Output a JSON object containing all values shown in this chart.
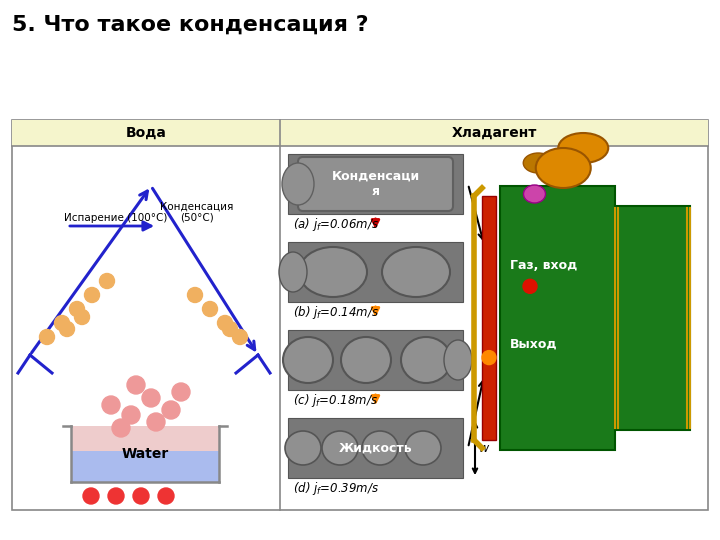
{
  "title": "5. Что такое конденсация ?",
  "title_fontsize": 16,
  "bg_color": "#ffffff",
  "header_bg": "#f5f5cc",
  "col1_header": "Вода",
  "col2_header": "Хладагент",
  "water_label": "Water",
  "evap_label": "Испарение (100°C)",
  "cond_label": "Конденсация\n(50°C)",
  "kondensaciya_label": "Конденсаци\nя",
  "zhidkost_label": "Жидкость",
  "gaz_vhod_label": "Газ, вход",
  "vyhod_label": "Выход",
  "series_a": "(a) $j_f$=0.06m/s",
  "series_b": "(b) $j_f$=0.14m/s",
  "series_c": "(c) $j_f$=0.18m/s",
  "series_d": "(d) $j_f$=0.39m/s",
  "blue_color": "#2222cc",
  "orange_color": "#ff8800",
  "red_color": "#cc0000",
  "pink_bubble": "#ee9999",
  "peach_bubble": "#f0b060"
}
